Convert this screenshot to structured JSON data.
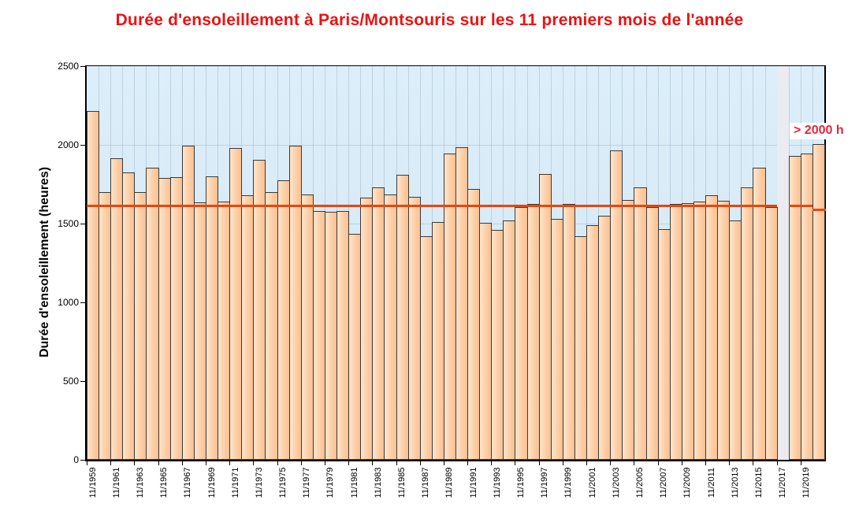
{
  "title": {
    "text": "Durée d'ensoleillement à Paris/Montsouris sur les 11 premiers mois de l'année",
    "color": "#ee1111"
  },
  "annotation": {
    "text": "> 2000 h",
    "color": "#e4263c"
  },
  "y_axis": {
    "label": "Durée d'ensoleillement (heures)",
    "ticks": [
      0,
      500,
      1000,
      1500,
      2000,
      2500
    ]
  },
  "x_axis": {
    "tick_labels": [
      "11/1959",
      "11/1961",
      "11/1963",
      "11/1965",
      "11/1967",
      "11/1969",
      "11/1971",
      "11/1973",
      "11/1975",
      "11/1977",
      "11/1979",
      "11/1981",
      "11/1983",
      "11/1985",
      "11/1987",
      "11/1989",
      "11/1991",
      "11/1993",
      "11/1995",
      "11/1997",
      "11/1999",
      "11/2001",
      "11/2003",
      "11/2005",
      "11/2007",
      "11/2009",
      "11/2011",
      "11/2013",
      "11/2015",
      "11/2017",
      "11/2019"
    ]
  },
  "chart_data": {
    "type": "bar",
    "title": "Durée d'ensoleillement à Paris/Montsouris sur les 11 premiers mois de l'année",
    "ylabel": "Durée d'ensoleillement (heures)",
    "ylim": [
      0,
      2500
    ],
    "grid": true,
    "years": [
      1959,
      1960,
      1961,
      1962,
      1963,
      1964,
      1965,
      1966,
      1967,
      1968,
      1969,
      1970,
      1971,
      1972,
      1973,
      1974,
      1975,
      1976,
      1977,
      1978,
      1979,
      1980,
      1981,
      1982,
      1983,
      1984,
      1985,
      1986,
      1987,
      1988,
      1989,
      1990,
      1991,
      1992,
      1993,
      1994,
      1995,
      1996,
      1997,
      1998,
      1999,
      2000,
      2001,
      2002,
      2003,
      2004,
      2005,
      2006,
      2007,
      2008,
      2009,
      2010,
      2011,
      2012,
      2013,
      2014,
      2015,
      2016,
      2017,
      2018,
      2019,
      2020
    ],
    "values": [
      2215,
      1700,
      1915,
      1825,
      1700,
      1855,
      1790,
      1795,
      1995,
      1635,
      1800,
      1640,
      1980,
      1680,
      1905,
      1700,
      1775,
      1995,
      1685,
      1580,
      1575,
      1580,
      1435,
      1665,
      1730,
      1685,
      1810,
      1670,
      1420,
      1510,
      1945,
      1985,
      1720,
      1505,
      1460,
      1520,
      1605,
      1625,
      1815,
      1530,
      1625,
      1420,
      1490,
      1550,
      1965,
      1650,
      1730,
      1605,
      1465,
      1625,
      1630,
      1640,
      1680,
      1645,
      1520,
      1730,
      1855,
      1605,
      null,
      1930,
      1945,
      2005
    ],
    "missing_year": 2017,
    "mean_line": {
      "value": 1612,
      "value_last_bar": 1587,
      "color": "#e5470f"
    },
    "bar_fill": "#fcd0a8",
    "bar_border": "#3a3a3a",
    "plot_background": "#d6e9f6",
    "missing_band_color": "#ebecf1"
  }
}
